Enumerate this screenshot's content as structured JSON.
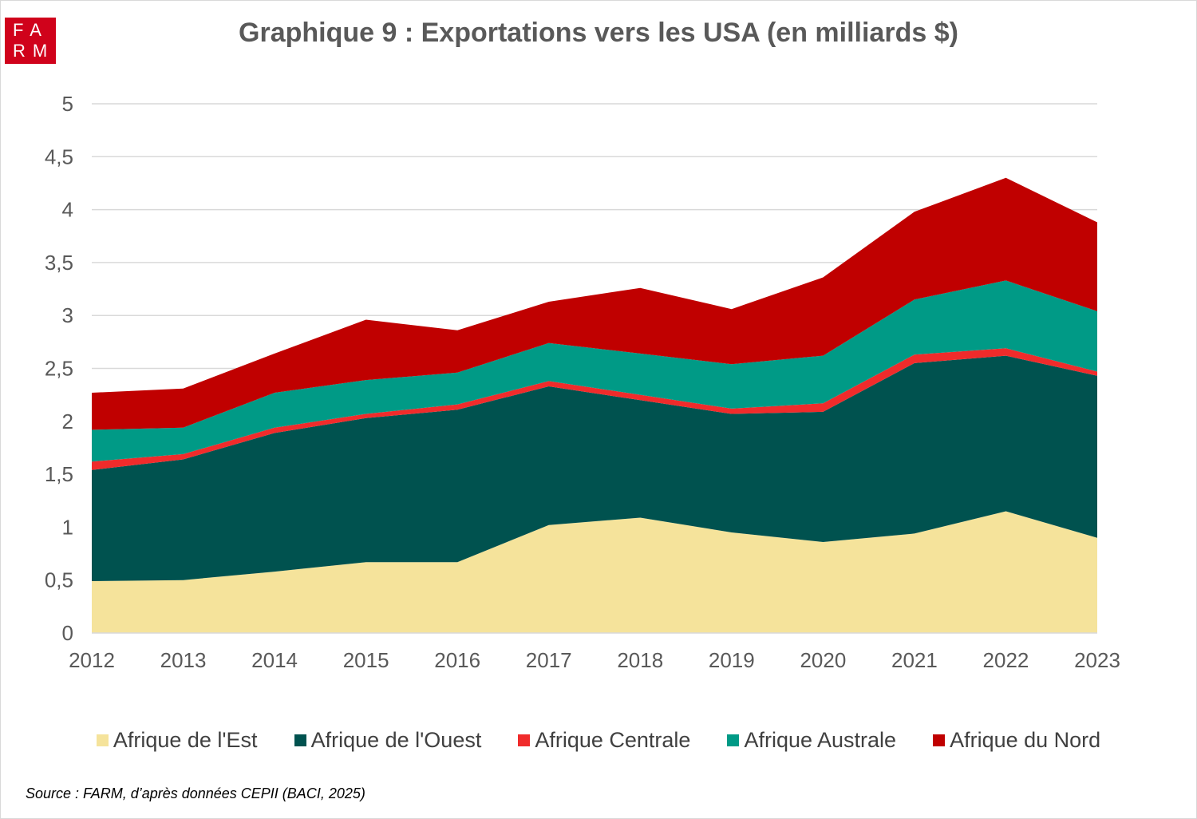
{
  "logo": {
    "line1": "FA",
    "line2": "RM"
  },
  "chart_data": {
    "type": "area",
    "stacked": true,
    "title": "Graphique 9 : Exportations vers les USA (en milliards $)",
    "categories": [
      "2012",
      "2013",
      "2014",
      "2015",
      "2016",
      "2017",
      "2018",
      "2019",
      "2020",
      "2021",
      "2022",
      "2023"
    ],
    "ylim": [
      0,
      5
    ],
    "yticks": [
      "0",
      "0,5",
      "1",
      "1,5",
      "2",
      "2,5",
      "3",
      "3,5",
      "4",
      "4,5",
      "5"
    ],
    "grid": true,
    "legend_position": "bottom",
    "series": [
      {
        "name": "Afrique de l'Est",
        "color": "#f5e39b",
        "values": [
          0.49,
          0.5,
          0.58,
          0.67,
          0.67,
          1.02,
          1.09,
          0.95,
          0.86,
          0.94,
          1.15,
          0.9
        ]
      },
      {
        "name": "Afrique de l'Ouest",
        "color": "#00524f",
        "values": [
          1.05,
          1.14,
          1.31,
          1.36,
          1.44,
          1.31,
          1.11,
          1.12,
          1.23,
          1.61,
          1.47,
          1.53
        ]
      },
      {
        "name": "Afrique Centrale",
        "color": "#f02b2b",
        "values": [
          0.08,
          0.05,
          0.05,
          0.04,
          0.05,
          0.05,
          0.05,
          0.05,
          0.08,
          0.08,
          0.07,
          0.04
        ]
      },
      {
        "name": "Afrique Australe",
        "color": "#009a86",
        "values": [
          0.3,
          0.25,
          0.33,
          0.32,
          0.3,
          0.36,
          0.39,
          0.42,
          0.45,
          0.52,
          0.64,
          0.57
        ]
      },
      {
        "name": "Afrique du Nord",
        "color": "#c00000",
        "values": [
          0.35,
          0.37,
          0.37,
          0.57,
          0.4,
          0.39,
          0.62,
          0.52,
          0.74,
          0.83,
          0.97,
          0.84
        ]
      }
    ]
  },
  "source": "Source : FARM, d’après données CEPII (BACI, 2025)"
}
